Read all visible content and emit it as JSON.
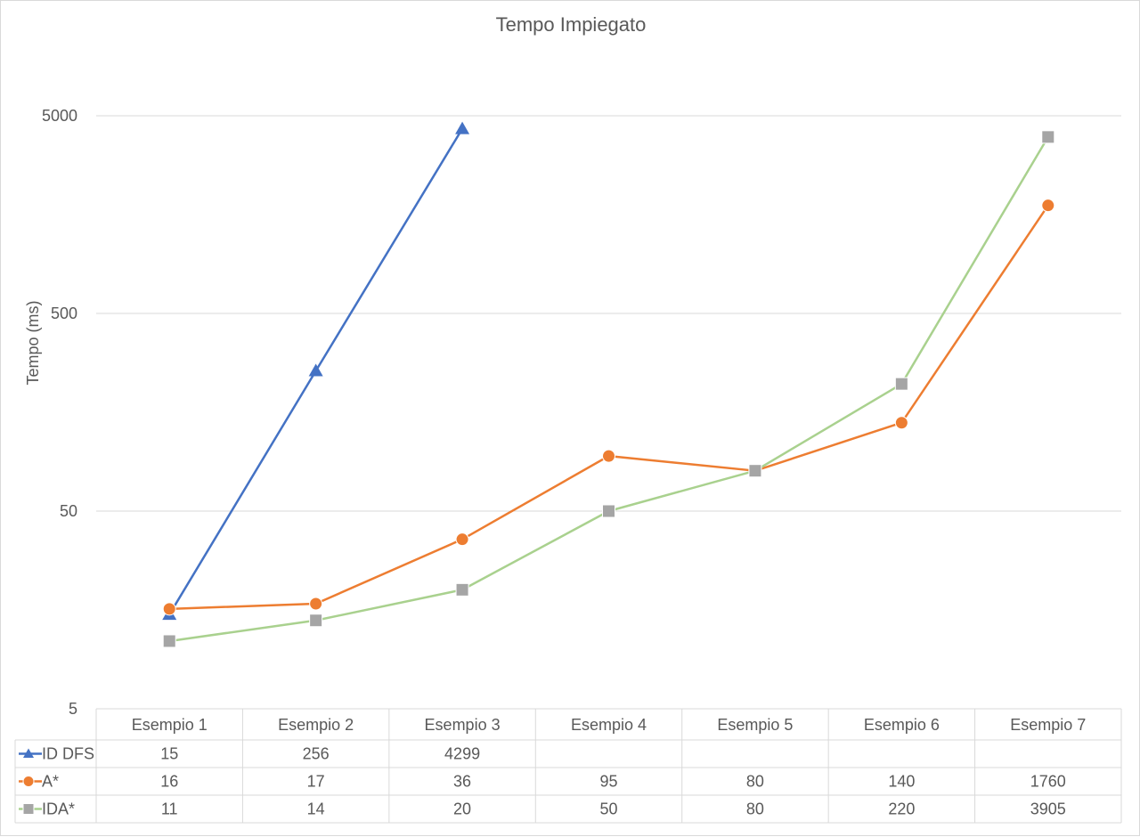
{
  "chart_data": {
    "type": "line",
    "title": "Tempo Impiegato",
    "ylabel": "Tempo (ms)",
    "xlabel": "",
    "yscale": "log",
    "ylim": [
      5,
      5000
    ],
    "yticks": [
      "5",
      "50",
      "500",
      "5000"
    ],
    "grid": true,
    "legend": "data-table",
    "categories": [
      "Esempio 1",
      "Esempio 2",
      "Esempio 3",
      "Esempio 4",
      "Esempio 5",
      "Esempio 6",
      "Esempio 7"
    ],
    "series": [
      {
        "name": "ID DFS",
        "values": [
          15,
          256,
          4299,
          null,
          null,
          null,
          null
        ],
        "color": "#4472c4",
        "marker": "triangle"
      },
      {
        "name": "A*",
        "values": [
          16,
          17,
          36,
          95,
          80,
          140,
          1760
        ],
        "color": "#ed7d31",
        "marker": "circle"
      },
      {
        "name": "IDA*",
        "values": [
          11,
          14,
          20,
          50,
          80,
          220,
          3905
        ],
        "color": "#a9d18e",
        "marker": "square",
        "marker_color": "#a5a5a5"
      }
    ],
    "table_values": [
      [
        "15",
        "256",
        "4299",
        "",
        "",
        "",
        ""
      ],
      [
        "16",
        "17",
        "36",
        "95",
        "80",
        "140",
        "1760"
      ],
      [
        "11",
        "14",
        "20",
        "50",
        "80",
        "220",
        "3905"
      ]
    ]
  }
}
